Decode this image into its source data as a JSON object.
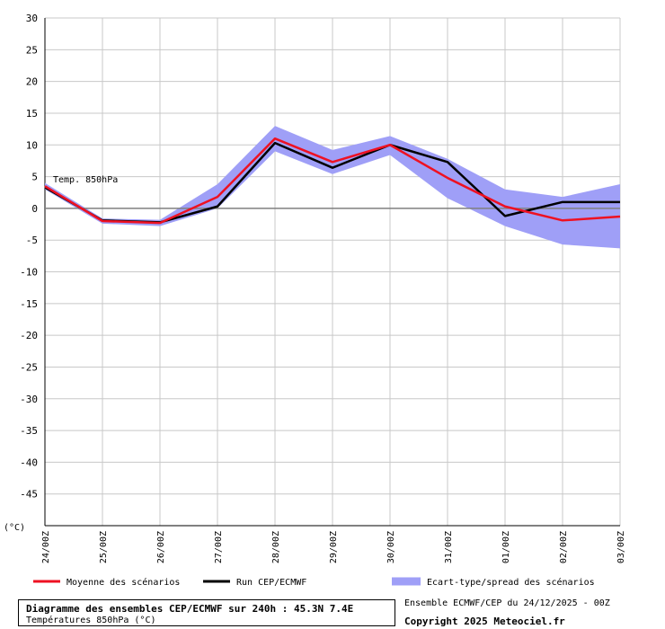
{
  "chart_data": {
    "type": "line",
    "y_unit": "(°C)",
    "ylim": [
      -50,
      30
    ],
    "y_ticks": [
      30,
      25,
      20,
      15,
      10,
      5,
      0,
      -5,
      -10,
      -15,
      -20,
      -25,
      -30,
      -35,
      -40,
      -45
    ],
    "categories": [
      "24/00Z",
      "25/00Z",
      "26/00Z",
      "27/00Z",
      "28/00Z",
      "29/00Z",
      "30/00Z",
      "31/00Z",
      "01/00Z",
      "02/00Z",
      "03/00Z"
    ],
    "annotation": "Temp. 850hPa",
    "grid": true,
    "series": [
      {
        "name": "Moyenne des scénarios",
        "type": "line",
        "color": "#ee1122",
        "values": [
          3.5,
          -2.0,
          -2.3,
          1.8,
          11.0,
          7.3,
          10.0,
          4.8,
          0.3,
          -1.9,
          -1.3
        ]
      },
      {
        "name": "Run CEP/ECMWF",
        "type": "line",
        "color": "#000000",
        "values": [
          3.3,
          -1.9,
          -2.2,
          0.3,
          10.3,
          6.4,
          10.0,
          7.3,
          -1.2,
          1.0,
          1.0
        ]
      },
      {
        "name": "Ecart-type/spread des scénarios",
        "type": "band",
        "color": "#9f9ff7",
        "upper": [
          4.0,
          -1.6,
          -1.8,
          3.8,
          13.0,
          9.2,
          11.4,
          7.8,
          3.0,
          1.8,
          3.8
        ],
        "lower": [
          3.0,
          -2.4,
          -2.8,
          0.0,
          9.0,
          5.4,
          8.4,
          1.6,
          -2.8,
          -5.7,
          -6.3
        ]
      }
    ]
  },
  "footer": {
    "title": "Diagramme des ensembles CEP/ECMWF sur 240h : 45.3N 7.4E",
    "subtitle": "Températures 850hPa (°C)",
    "ensemble_info": "Ensemble ECMWF/CEP du 24/12/2025 - 00Z",
    "copyright": "Copyright 2025 Meteociel.fr"
  }
}
